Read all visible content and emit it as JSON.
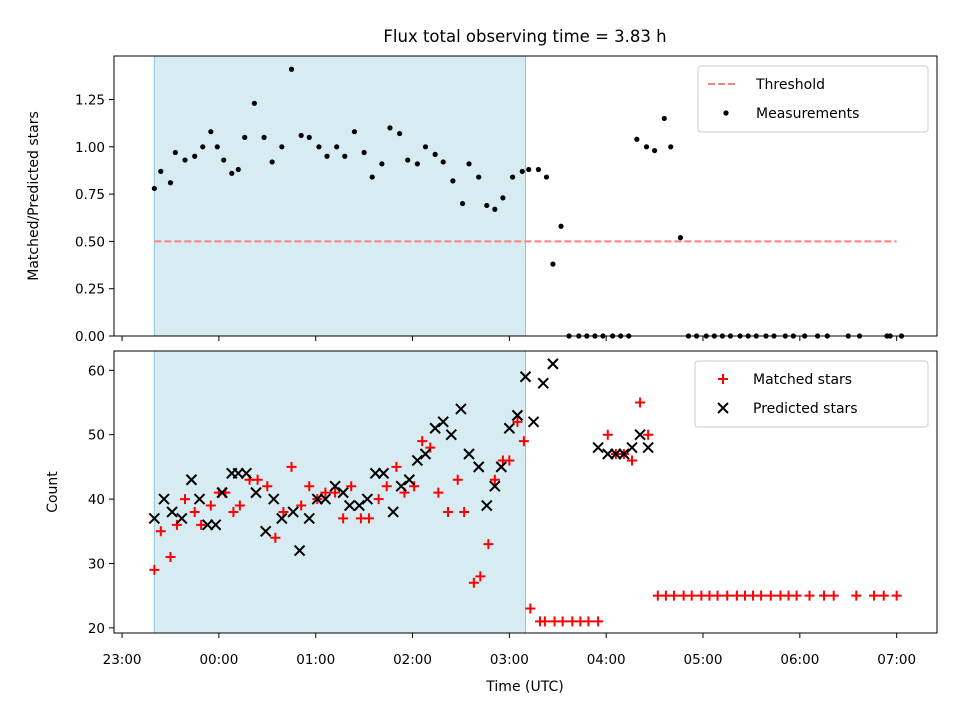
{
  "chart_data": [
    {
      "type": "scatter",
      "title": "Flux total observing time = 3.83 h",
      "ylabel": "Matched/Predicted stars",
      "xlabel": "",
      "xlim": [
        "22:55",
        "07:25"
      ],
      "ylim": [
        0,
        1.48
      ],
      "yticks": [
        "0.00",
        "0.25",
        "0.50",
        "0.75",
        "1.00",
        "1.25"
      ],
      "shaded_span": [
        "23:20",
        "03:10"
      ],
      "threshold": {
        "name": "Threshold",
        "value": 0.5,
        "from": "23:20",
        "to": "07:00",
        "color": "#ff7f7f",
        "style": "dashed"
      },
      "legend_position": "upper right",
      "series": [
        {
          "name": "Measurements",
          "color": "#000000",
          "marker": "dot",
          "x": [
            "23:20",
            "23:24",
            "23:30",
            "23:33",
            "23:39",
            "23:45",
            "23:50",
            "23:55",
            "23:59",
            "00:03",
            "00:08",
            "00:12",
            "00:16",
            "00:22",
            "00:28",
            "00:33",
            "00:39",
            "00:45",
            "00:51",
            "00:56",
            "01:02",
            "01:07",
            "01:13",
            "01:18",
            "01:24",
            "01:30",
            "01:35",
            "01:41",
            "01:46",
            "01:52",
            "01:57",
            "02:03",
            "02:08",
            "02:14",
            "02:19",
            "02:25",
            "02:31",
            "02:35",
            "02:41",
            "02:46",
            "02:51",
            "02:56",
            "03:02",
            "03:08",
            "03:12",
            "03:18",
            "03:23",
            "03:27",
            "03:32",
            "03:37",
            "03:43",
            "03:48",
            "03:53",
            "03:58",
            "04:04",
            "04:09",
            "04:14",
            "04:19",
            "04:25",
            "04:30",
            "04:36",
            "04:40",
            "04:46",
            "04:51",
            "04:56",
            "05:02",
            "05:07",
            "05:12",
            "05:17",
            "05:23",
            "05:28",
            "05:33",
            "05:39",
            "05:44",
            "05:51",
            "05:56",
            "06:03",
            "06:11",
            "06:17",
            "06:30",
            "06:37",
            "06:54",
            "06:56",
            "07:03"
          ],
          "y": [
            0.78,
            0.87,
            0.81,
            0.97,
            0.93,
            0.95,
            1.0,
            1.08,
            1.0,
            0.93,
            0.86,
            0.88,
            1.05,
            1.23,
            1.05,
            0.92,
            1.0,
            1.41,
            1.06,
            1.05,
            1.0,
            0.95,
            1.0,
            0.95,
            1.08,
            0.97,
            0.84,
            0.91,
            1.1,
            1.07,
            0.93,
            0.91,
            1.0,
            0.96,
            0.92,
            0.82,
            0.7,
            0.91,
            0.84,
            0.69,
            0.67,
            0.73,
            0.84,
            0.87,
            0.88,
            0.88,
            0.84,
            0.38,
            0.58,
            0,
            0,
            0,
            0,
            0,
            0,
            0,
            0,
            1.04,
            1.0,
            0.98,
            1.15,
            1.0,
            0.52,
            0,
            0,
            0,
            0,
            0,
            0,
            0,
            0,
            0,
            0,
            0,
            0,
            0,
            0,
            0,
            0,
            0,
            0,
            0,
            0,
            0
          ]
        }
      ]
    },
    {
      "type": "scatter",
      "title": "",
      "ylabel": "Count",
      "xlabel": "Time (UTC)",
      "xlim": [
        "22:55",
        "07:25"
      ],
      "ylim": [
        19.2,
        63
      ],
      "xticks": [
        "23:00",
        "00:00",
        "01:00",
        "02:00",
        "03:00",
        "04:00",
        "05:00",
        "06:00",
        "07:00"
      ],
      "yticks": [
        "20",
        "30",
        "40",
        "50",
        "60"
      ],
      "shaded_span": [
        "23:20",
        "03:10"
      ],
      "legend_position": "upper right",
      "series": [
        {
          "name": "Matched stars",
          "color": "#ff0000",
          "marker": "plus",
          "x": [
            "23:20",
            "23:24",
            "23:30",
            "23:34",
            "23:39",
            "23:45",
            "23:49",
            "23:55",
            "00:00",
            "00:04",
            "00:09",
            "00:13",
            "00:19",
            "00:24",
            "00:30",
            "00:35",
            "00:40",
            "00:45",
            "00:51",
            "00:56",
            "01:01",
            "01:06",
            "01:12",
            "01:17",
            "01:22",
            "01:28",
            "01:33",
            "01:39",
            "01:44",
            "01:50",
            "01:55",
            "02:01",
            "02:06",
            "02:11",
            "02:16",
            "02:22",
            "02:28",
            "02:32",
            "02:38",
            "02:42",
            "02:47",
            "02:51",
            "02:56",
            "03:00",
            "03:05",
            "03:09",
            "03:13",
            "03:19",
            "03:22",
            "03:28",
            "03:33",
            "03:39",
            "03:44",
            "03:49",
            "03:55",
            "04:01",
            "04:06",
            "04:11",
            "04:16",
            "04:21",
            "04:26",
            "04:32",
            "04:37",
            "04:42",
            "04:48",
            "04:53",
            "04:59",
            "05:04",
            "05:09",
            "05:15",
            "05:21",
            "05:26",
            "05:31",
            "05:36",
            "05:42",
            "05:48",
            "05:53",
            "05:58",
            "06:06",
            "06:15",
            "06:21",
            "06:35",
            "06:46",
            "06:52",
            "07:00"
          ],
          "y": [
            29,
            35,
            31,
            36,
            40,
            38,
            36,
            39,
            41,
            41,
            38,
            39,
            43,
            43,
            42,
            34,
            38,
            45,
            39,
            42,
            40,
            41,
            41,
            37,
            42,
            37,
            37,
            40,
            42,
            45,
            41,
            42,
            49,
            48,
            41,
            38,
            43,
            38,
            27,
            28,
            33,
            43,
            46,
            46,
            52,
            49,
            23,
            21,
            21,
            21,
            21,
            21,
            21,
            21,
            21,
            50,
            47,
            47,
            46,
            55,
            50,
            25,
            25,
            25,
            25,
            25,
            25,
            25,
            25,
            25,
            25,
            25,
            25,
            25,
            25,
            25,
            25,
            25,
            25,
            25,
            25,
            25,
            25,
            25,
            25
          ]
        },
        {
          "name": "Predicted stars",
          "color": "#000000",
          "marker": "x",
          "x": [
            "23:20",
            "23:26",
            "23:31",
            "23:37",
            "23:43",
            "23:48",
            "23:53",
            "23:58",
            "00:02",
            "00:08",
            "00:12",
            "00:17",
            "00:23",
            "00:29",
            "00:34",
            "00:39",
            "00:46",
            "00:50",
            "00:56",
            "01:01",
            "01:06",
            "01:12",
            "01:17",
            "01:21",
            "01:27",
            "01:32",
            "01:37",
            "01:42",
            "01:48",
            "01:53",
            "01:58",
            "02:03",
            "02:08",
            "02:14",
            "02:19",
            "02:24",
            "02:30",
            "02:35",
            "02:41",
            "02:46",
            "02:51",
            "02:55",
            "03:00",
            "03:05",
            "03:10",
            "03:15",
            "03:21",
            "03:27",
            "03:55",
            "04:01",
            "04:06",
            "04:11",
            "04:16",
            "04:21",
            "04:26"
          ],
          "y": [
            37,
            40,
            38,
            37,
            43,
            40,
            36,
            36,
            41,
            44,
            44,
            44,
            41,
            35,
            40,
            37,
            38,
            32,
            37,
            40,
            40,
            42,
            41,
            39,
            39,
            40,
            44,
            44,
            38,
            42,
            43,
            46,
            47,
            51,
            52,
            50,
            54,
            47,
            45,
            39,
            42,
            45,
            51,
            53,
            59,
            52,
            58,
            61,
            48,
            47,
            47,
            47,
            48,
            50,
            48
          ]
        }
      ]
    }
  ]
}
